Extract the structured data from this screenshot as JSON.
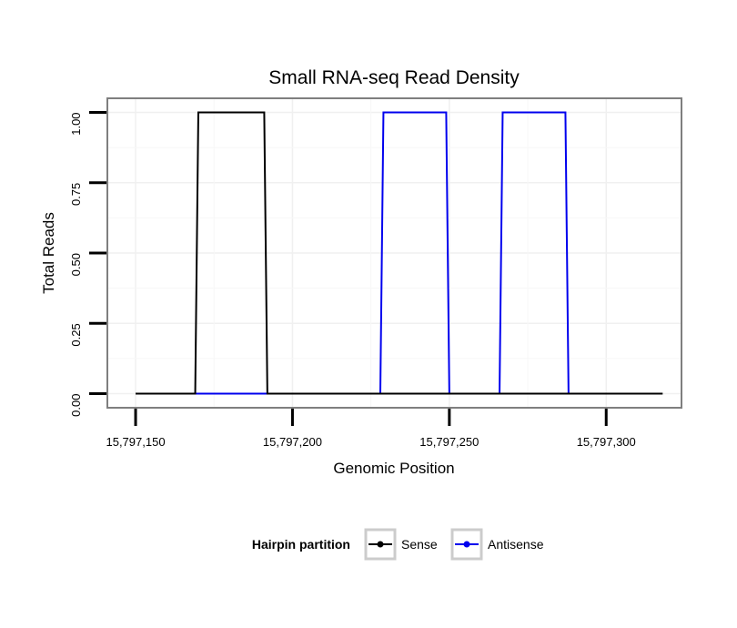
{
  "chart_data": {
    "type": "line",
    "title": "Small RNA-seq Read Density",
    "xlabel": "Genomic Position",
    "ylabel": "Total Reads",
    "xlim": [
      15797141,
      15797324
    ],
    "ylim": [
      -0.05,
      1.05
    ],
    "x_ticks": [
      15797150,
      15797200,
      15797250,
      15797300
    ],
    "x_tick_labels": [
      "15,797,150",
      "15,797,200",
      "15,797,250",
      "15,797,300"
    ],
    "y_ticks": [
      0,
      0.25,
      0.5,
      0.75,
      1.0
    ],
    "y_tick_labels": [
      "0.00",
      "0.25",
      "0.50",
      "0.75",
      "1.00"
    ],
    "grid": true,
    "legend": {
      "title": "Hairpin partition",
      "position": "bottom",
      "entries": [
        "Sense",
        "Antisense"
      ]
    },
    "series": [
      {
        "name": "Sense",
        "color": "#000000",
        "x": [
          15797150,
          15797169,
          15797170,
          15797191,
          15797192,
          15797318
        ],
        "y": [
          0,
          0,
          1,
          1,
          0,
          0
        ]
      },
      {
        "name": "Antisense",
        "color": "#0000ee",
        "x": [
          15797169,
          15797228,
          15797229,
          15797249,
          15797250,
          15797266,
          15797267,
          15797287,
          15797288
        ],
        "y": [
          0,
          0,
          1,
          1,
          0,
          0,
          1,
          1,
          0
        ]
      }
    ]
  }
}
